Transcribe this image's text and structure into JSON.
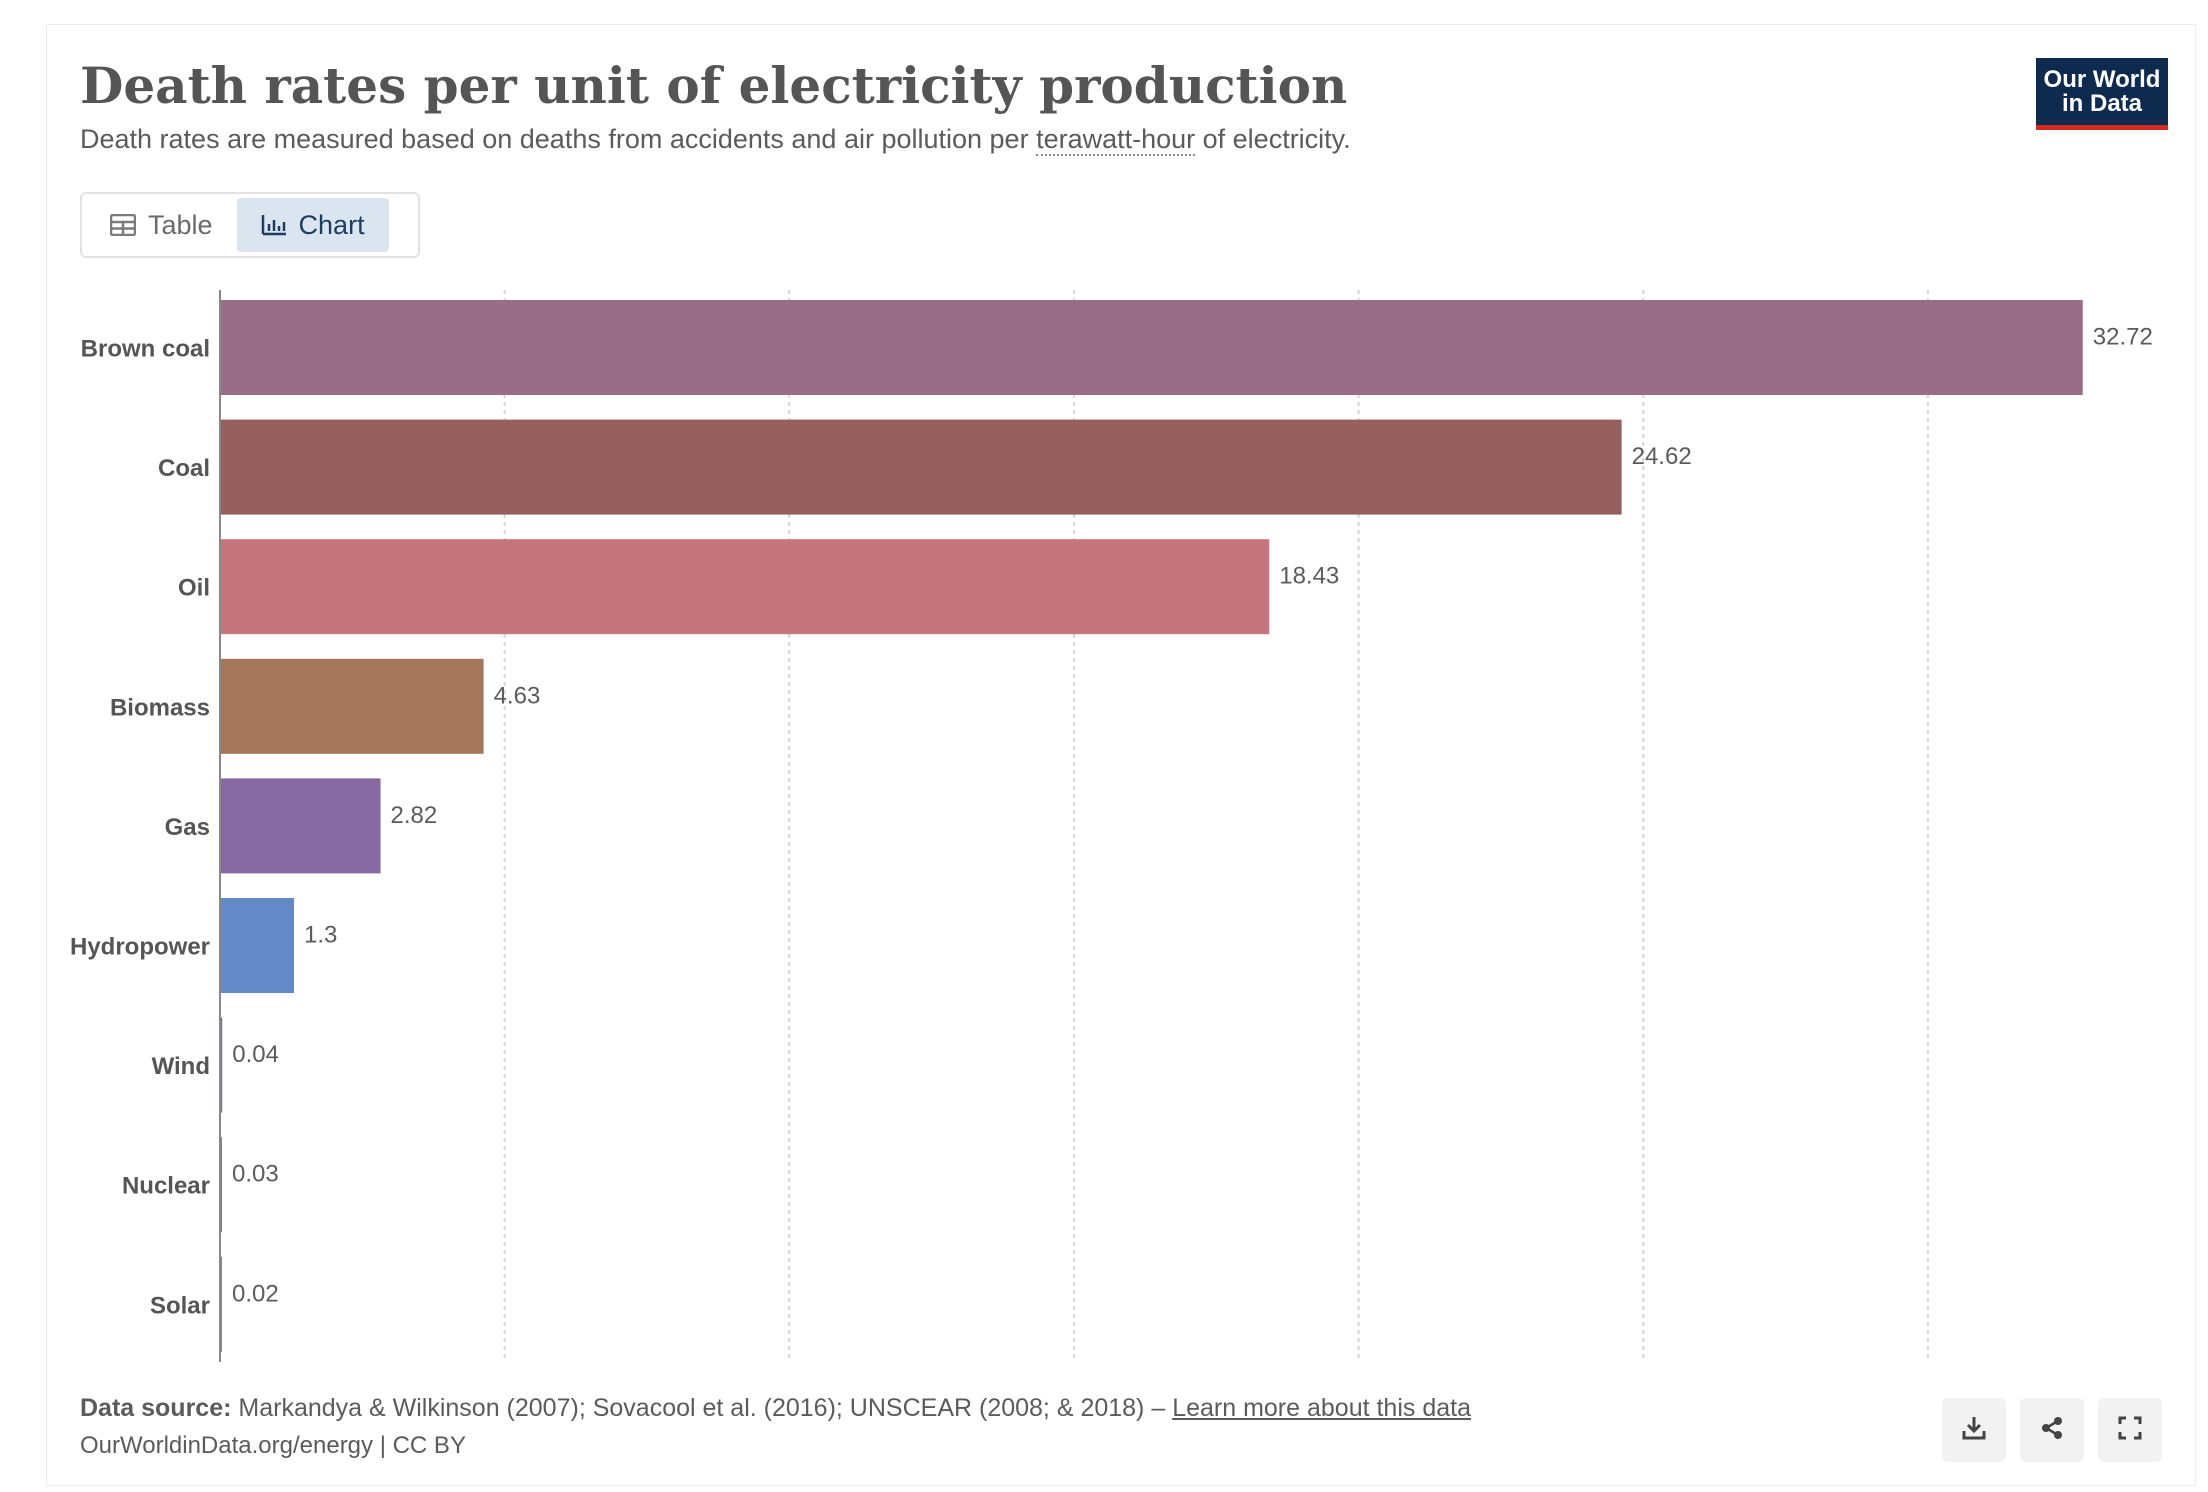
{
  "header": {
    "title": "Death rates per unit of electricity production",
    "subtitle_before": "Death rates are measured based on deaths from accidents and air pollution per ",
    "subtitle_term": "terawatt-hour",
    "subtitle_after": " of electricity.",
    "logo_line1": "Our World",
    "logo_line2": "in Data"
  },
  "tabs": [
    {
      "label": "Table",
      "icon": "table-icon",
      "active": false
    },
    {
      "label": "Chart",
      "icon": "chart-icon",
      "active": true
    }
  ],
  "chart_data": {
    "type": "bar",
    "orientation": "horizontal",
    "title": "Death rates per unit of electricity production",
    "categories": [
      "Brown coal",
      "Coal",
      "Oil",
      "Biomass",
      "Gas",
      "Hydropower",
      "Wind",
      "Nuclear",
      "Solar"
    ],
    "values": [
      32.72,
      24.62,
      18.43,
      4.63,
      2.82,
      1.3,
      0.04,
      0.03,
      0.02
    ],
    "value_labels": [
      "32.72",
      "24.62",
      "18.43",
      "4.63",
      "2.82",
      "1.3",
      "0.04",
      "0.03",
      "0.02"
    ],
    "colors": [
      "#9a6d86",
      "#975f5f",
      "#c4757e",
      "#a57659",
      "#8769a4",
      "#6389c7",
      "#6b7ea0",
      "#6b8596",
      "#788a99"
    ],
    "xlim": [
      0,
      35
    ],
    "grid_step": 5,
    "grid": true,
    "xlabel": "",
    "ylabel": ""
  },
  "footer": {
    "source_label": "Data source:",
    "source_text": " Markandya & Wilkinson (2007); Sovacool et al. (2016); UNSCEAR (2008; & 2018) – ",
    "learn_more": "Learn more about this data",
    "url": "OurWorldinData.org/energy | CC BY"
  },
  "actions": [
    {
      "name": "download",
      "icon": "download-icon"
    },
    {
      "name": "share",
      "icon": "share-icon"
    },
    {
      "name": "fullscreen",
      "icon": "fullscreen-icon"
    }
  ],
  "colors": {
    "logo_bg": "#0f2a4f",
    "logo_accent": "#d42b21",
    "active_tab_bg": "#dbe5f0"
  }
}
